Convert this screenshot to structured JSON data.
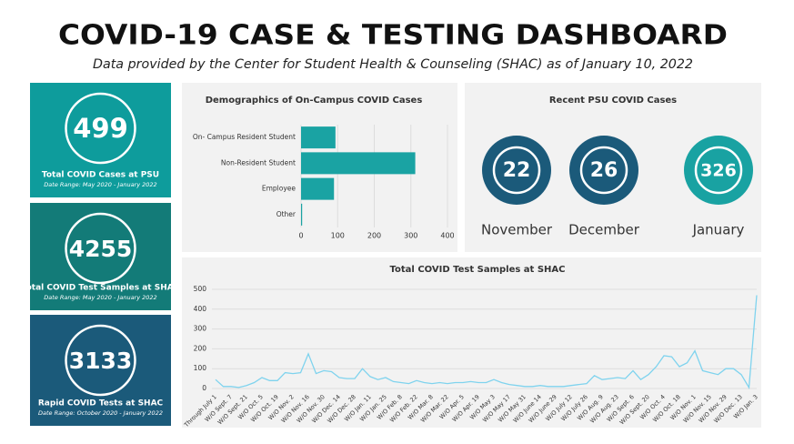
{
  "header": {
    "title": "COVID-19 CASE & TESTING DASHBOARD",
    "subtitle": "Data provided by the Center for Student Health & Counseling (SHAC) as of January 10, 2022"
  },
  "cards": [
    {
      "value": 499,
      "label": "Total COVID Cases at PSU",
      "range": "Date Range: May 2020 - January 2022",
      "color": "#0e9c9c"
    },
    {
      "value": 4255,
      "label": "Total COVID Test Samples  at SHAC",
      "range": "Date Range: May 2020 - January 2022",
      "color": "#137b78"
    },
    {
      "value": 3133,
      "label": "Rapid COVID Tests at SHAC",
      "range": "Date Range: October 2020 - January 2022",
      "color": "#1b5a7a"
    }
  ],
  "recent": {
    "title": "Recent PSU COVID Cases",
    "items": [
      {
        "value": 22,
        "label": "November",
        "color": "#1b5a7a"
      },
      {
        "value": 26,
        "label": "December",
        "color": "#1b5a7a"
      },
      {
        "value": 326,
        "label": "January",
        "color": "#19a2a2"
      }
    ]
  },
  "chart_data": [
    {
      "type": "hbar",
      "title": "Demographics of  On-Campus COVID Cases",
      "categories": [
        "On- Campus Resident Student",
        "Non-Resident Student",
        "Employee",
        "Other"
      ],
      "values": [
        94,
        312,
        90,
        3
      ],
      "color": "#1aa3a3",
      "xlim": [
        0,
        400
      ],
      "xticks": [
        0,
        100,
        200,
        300,
        400
      ],
      "grid": true
    },
    {
      "type": "line",
      "title": "Total COVID Test Samples at SHAC",
      "categories": [
        "Through July 1",
        null,
        "W/O Sept. 7",
        null,
        "W/O Sept. 21",
        null,
        "W/O Oct. 5",
        null,
        "W/O Oct. 19",
        null,
        "W/O Nov. 2",
        null,
        "W/O Nov. 16",
        null,
        "W/O Nov. 30",
        null,
        "W/O Dec. 14",
        null,
        "W/O Dec. 28",
        null,
        "W/O Jan. 11",
        null,
        "W/O Jan. 25",
        null,
        "W/O Feb. 8",
        null,
        "W/O Feb. 22",
        null,
        "W/O Mar. 8",
        null,
        "W/O Mar. 22",
        null,
        "W/O Apr. 5",
        null,
        "W/O Apr. 19",
        null,
        "W/O May 3",
        null,
        "W/O May 17",
        null,
        "W/O May 31",
        null,
        "W/O June 14",
        null,
        "W/O June 29",
        null,
        "W/O July 12",
        null,
        "W/O July 26",
        null,
        "W/O Aug. 9",
        null,
        "W/O Aug. 23",
        null,
        "W/O Sept. 6",
        null,
        "W/O Sept. 20",
        null,
        "W/O Oct. 4",
        null,
        "W/O Oct. 18",
        null,
        "W/O Nov. 1",
        null,
        "W/O Nov. 15",
        null,
        "W/O Nov. 29",
        null,
        "W/O Dec. 13",
        null,
        "W/O Jan. 3"
      ],
      "values": [
        45,
        10,
        10,
        5,
        15,
        30,
        55,
        40,
        40,
        80,
        75,
        80,
        175,
        75,
        90,
        85,
        55,
        50,
        50,
        100,
        60,
        45,
        55,
        35,
        30,
        25,
        40,
        30,
        25,
        30,
        25,
        30,
        30,
        35,
        30,
        30,
        45,
        30,
        20,
        15,
        10,
        10,
        15,
        10,
        10,
        10,
        15,
        20,
        25,
        65,
        45,
        50,
        55,
        50,
        90,
        45,
        70,
        110,
        165,
        160,
        110,
        130,
        190,
        90,
        80,
        70,
        100,
        100,
        70,
        5,
        470
      ],
      "color": "#7fd3ee",
      "ylim": [
        0,
        500
      ],
      "yticks": [
        0,
        100,
        200,
        300,
        400,
        500
      ],
      "grid": true
    }
  ]
}
